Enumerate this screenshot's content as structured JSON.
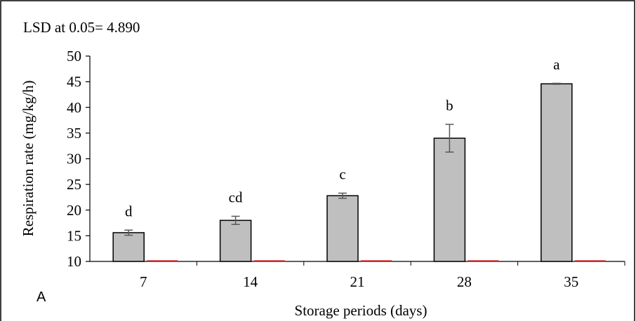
{
  "panel_label": "A",
  "annotation": "LSD at 0.05= 4.890",
  "chart_data": {
    "type": "bar",
    "title": "",
    "xlabel": "Storage periods (days)",
    "ylabel": "Respiration rate (mg/kg/h)",
    "categories": [
      "7",
      "14",
      "21",
      "28",
      "35"
    ],
    "values": [
      15.6,
      18.0,
      22.8,
      34.0,
      44.6
    ],
    "errors": [
      0.5,
      0.8,
      0.5,
      2.7,
      0.1
    ],
    "significance_letters": [
      "d",
      "cd",
      "c",
      "b",
      "a"
    ],
    "ylim": [
      10,
      50
    ],
    "yticks": [
      10,
      15,
      20,
      25,
      30,
      35,
      40,
      45,
      50
    ],
    "grid": false,
    "legend": "none",
    "colors": {
      "bar_fill": "#bfbfbf",
      "bar_stroke": "#000000",
      "error_bar": "#595959",
      "secondary_marker": "#c00000",
      "axis": "#000000"
    }
  }
}
